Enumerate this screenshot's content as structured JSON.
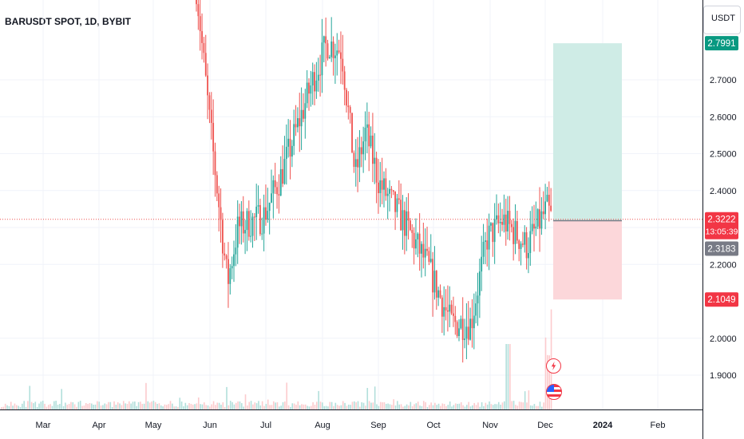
{
  "chart_data": {
    "type": "candlestick",
    "title": "BARUSDT SPOT, 1D, BYBIT",
    "unit": "USDT",
    "ylim": [
      1.82,
      2.92
    ],
    "x_ticks": [
      "Mar",
      "Apr",
      "May",
      "Jun",
      "Jul",
      "Aug",
      "Sep",
      "Oct",
      "Nov",
      "Dec",
      "2024",
      "Feb"
    ],
    "y_ticks": [
      1.9,
      2.0,
      2.2,
      2.3,
      2.4,
      2.5,
      2.6,
      2.7
    ],
    "y_tick_labels": [
      "1.9000",
      "2.0000",
      "2.2000",
      "2.3000",
      "2.4000",
      "2.5000",
      "2.6000",
      "2.7000"
    ],
    "price_labels": {
      "take_profit": "2.7991",
      "current": "2.3222",
      "countdown": "13:05:39",
      "last": "2.3183",
      "stop_loss": "2.1049"
    },
    "position": {
      "entry": 2.3183,
      "take_profit": 2.7991,
      "stop_loss": 2.1049,
      "start": "Dec",
      "end": "2024"
    },
    "colors": {
      "up": "#26a69a",
      "down": "#ef5350",
      "profit_zone": "#cfece6",
      "loss_zone": "#fcd7da",
      "take_profit_label": "#089981",
      "stop_loss_label": "#f23645",
      "last_label": "#787b86"
    },
    "series": [
      {
        "anchors": [
          [
            "Jun",
            2.95
          ],
          [
            "Jun",
            2.6
          ],
          [
            "Jun",
            2.15
          ],
          [
            "Jun",
            2.3
          ],
          [
            "Jul",
            2.33
          ],
          [
            "Jul",
            2.44
          ],
          [
            "Aug",
            2.7
          ],
          [
            "Aug",
            2.8
          ],
          [
            "Aug",
            2.78
          ],
          [
            "Aug",
            2.44
          ],
          [
            "Sep",
            2.56
          ],
          [
            "Sep",
            2.42
          ],
          [
            "Sep",
            2.3
          ],
          [
            "Oct",
            2.2
          ],
          [
            "Oct",
            2.04
          ],
          [
            "Oct",
            2.04
          ],
          [
            "Nov",
            2.27
          ],
          [
            "Nov",
            2.32
          ],
          [
            "Nov",
            2.25
          ],
          [
            "Dec",
            2.35
          ],
          [
            "Dec",
            2.32
          ]
        ]
      }
    ]
  }
}
